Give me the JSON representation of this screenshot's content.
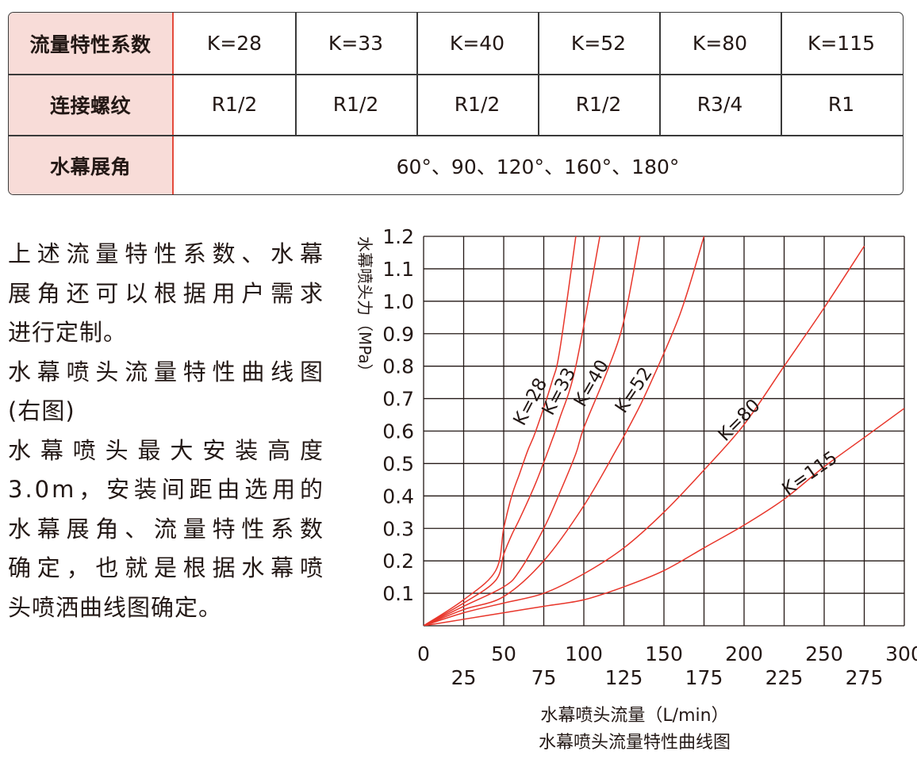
{
  "table": {
    "headers": [
      "流量特性系数",
      "连接螺纹",
      "水幕展角"
    ],
    "k_values": [
      "K=28",
      "K=33",
      "K=40",
      "K=52",
      "K=80",
      "K=115"
    ],
    "threads": [
      "R1/2",
      "R1/2",
      "R1/2",
      "R1/2",
      "R3/4",
      "R1"
    ],
    "angles": "60°、90、120°、160°、180°"
  },
  "description": {
    "lines": [
      "上述流量特性系数、水幕",
      "展角还可以根据用户需求",
      "进行定制。",
      "水幕喷头流量特性曲线图",
      "(右图)",
      "水幕喷头最大安装高度",
      "3.0m，安装间距由选用的",
      "水幕展角、流量特性系数",
      "确定，也就是根据水幕喷",
      "头喷洒曲线图确定。"
    ]
  },
  "chart_data": {
    "type": "line",
    "title": "水幕喷头流量特性曲线图",
    "xlabel": "水幕喷头流量（L/min）",
    "ylabel": "水幕喷头力（MPa）",
    "xlim": [
      0,
      300
    ],
    "ylim": [
      0,
      1.2
    ],
    "x_ticks": [
      "0",
      "25",
      "50",
      "75",
      "100",
      "125",
      "150",
      "175",
      "200",
      "225",
      "250",
      "275",
      "300"
    ],
    "y_ticks": [
      "0.1",
      "0.2",
      "0.3",
      "0.4",
      "0.5",
      "0.6",
      "0.7",
      "0.8",
      "0.9",
      "1.0",
      "1.1",
      "1.2"
    ],
    "grid": true,
    "series": [
      {
        "name": "K=28",
        "x": [
          0,
          25,
          45,
          50,
          55,
          60,
          65,
          70,
          80,
          85,
          95
        ],
        "y": [
          0,
          0.08,
          0.17,
          0.3,
          0.4,
          0.47,
          0.54,
          0.6,
          0.75,
          0.85,
          1.2
        ]
      },
      {
        "name": "K=33",
        "x": [
          0,
          25,
          45,
          50,
          55,
          60,
          70,
          80,
          85,
          95,
          110
        ],
        "y": [
          0,
          0.07,
          0.14,
          0.22,
          0.28,
          0.33,
          0.44,
          0.57,
          0.64,
          0.8,
          1.2
        ]
      },
      {
        "name": "K=40",
        "x": [
          0,
          25,
          50,
          60,
          75,
          85,
          95,
          100,
          115,
          125,
          135
        ],
        "y": [
          0,
          0.06,
          0.12,
          0.17,
          0.3,
          0.41,
          0.53,
          0.61,
          0.79,
          0.94,
          1.2
        ]
      },
      {
        "name": "K=52",
        "x": [
          0,
          25,
          50,
          75,
          100,
          120,
          130,
          140,
          160,
          175
        ],
        "y": [
          0,
          0.05,
          0.09,
          0.2,
          0.37,
          0.54,
          0.63,
          0.73,
          0.96,
          1.2
        ]
      },
      {
        "name": "K=80",
        "x": [
          0,
          25,
          50,
          75,
          100,
          125,
          150,
          175,
          200,
          225,
          250,
          275
        ],
        "y": [
          0,
          0.04,
          0.07,
          0.1,
          0.16,
          0.24,
          0.35,
          0.48,
          0.62,
          0.8,
          0.98,
          1.17
        ]
      },
      {
        "name": "K=115",
        "x": [
          0,
          25,
          50,
          75,
          100,
          125,
          150,
          175,
          200,
          225,
          250,
          275,
          300
        ],
        "y": [
          0,
          0.02,
          0.04,
          0.06,
          0.08,
          0.12,
          0.17,
          0.24,
          0.31,
          0.39,
          0.49,
          0.58,
          0.67
        ]
      }
    ],
    "colors": {
      "curve": "#e8362b",
      "grid": "#231815",
      "header_bg": "#f8dcd8"
    }
  }
}
